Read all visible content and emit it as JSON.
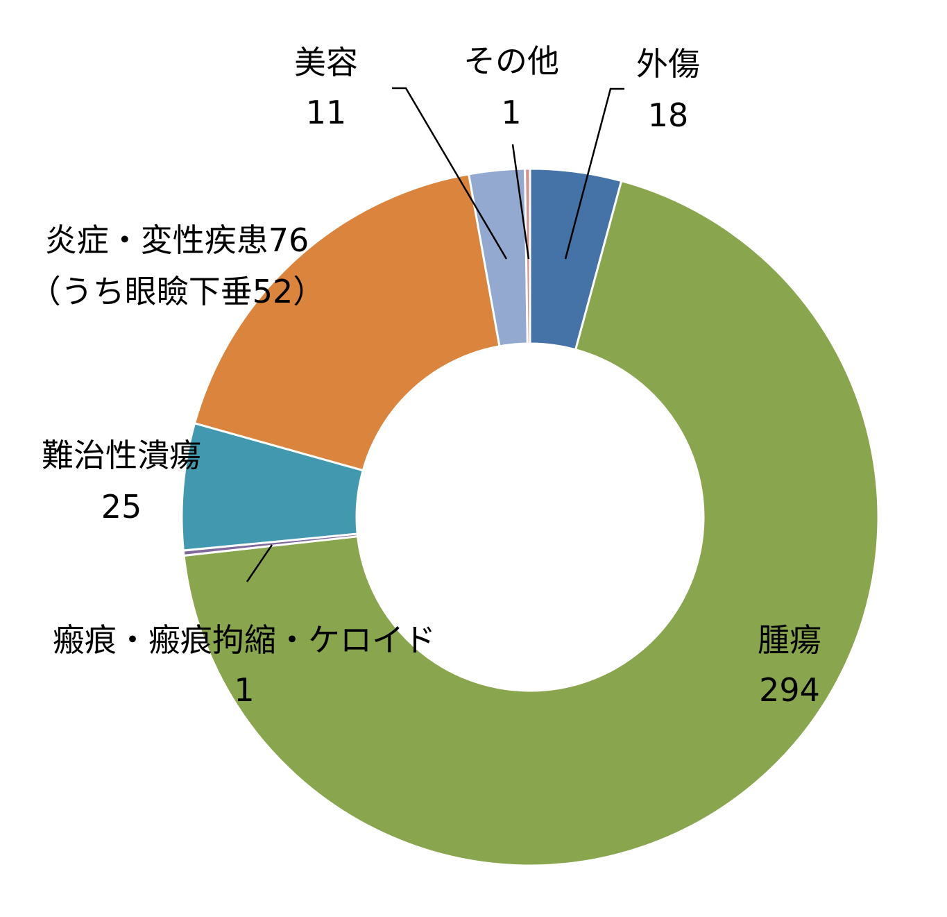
{
  "chart_data": {
    "type": "pie",
    "style": "donut",
    "title": "",
    "slices": [
      {
        "name": "外傷",
        "value": 18,
        "color": "#4572A7",
        "label_lines": [
          "外傷",
          "18"
        ]
      },
      {
        "name": "腫瘍",
        "value": 294,
        "color": "#89A54E",
        "label_lines": [
          "腫瘍",
          "294"
        ]
      },
      {
        "name": "瘢痕・瘢痕拘縮・ケロイド",
        "value": 1,
        "color": "#80699B",
        "label_lines": [
          "瘢痕・瘢痕拘縮・ケロイド",
          "1"
        ]
      },
      {
        "name": "難治性潰瘍",
        "value": 25,
        "color": "#4198AF",
        "label_lines": [
          "難治性潰瘍",
          "25"
        ]
      },
      {
        "name": "炎症・変性疾患",
        "value": 76,
        "color": "#DB843D",
        "label_lines": [
          "炎症・変性疾患76",
          "（うち眼瞼下垂52）"
        ]
      },
      {
        "name": "美容",
        "value": 11,
        "color": "#93A9CF",
        "label_lines": [
          "美容",
          "11"
        ]
      },
      {
        "name": "その他",
        "value": 1,
        "color": "#D19392",
        "label_lines": [
          "その他",
          "1"
        ]
      }
    ]
  }
}
